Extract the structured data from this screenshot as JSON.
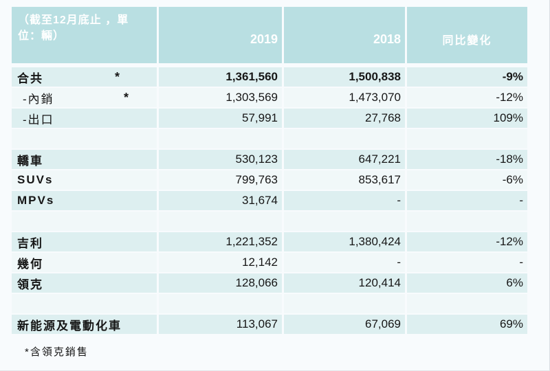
{
  "colors": {
    "header_bg": "#b9dfe2",
    "row_teal": "#ddeff0",
    "row_light": "#f1f8f9",
    "page_bg": "#f8fbfd",
    "header_text": "#ffffff",
    "body_text": "#161616"
  },
  "table": {
    "header": {
      "period": "（截至12月底止 ，單位：輛）",
      "col_2019": "2019",
      "col_2018": "2018",
      "col_change": "同比變化"
    },
    "rows": [
      {
        "type": "data",
        "label": "合共",
        "asterisk": "*",
        "v2019": "1,361,560",
        "v2018": "1,500,838",
        "change": "-9%",
        "bold": true,
        "indent": false
      },
      {
        "type": "data",
        "label": "-內銷",
        "asterisk": "*",
        "v2019": "1,303,569",
        "v2018": "1,473,070",
        "change": "-12%",
        "bold": false,
        "indent": true
      },
      {
        "type": "data",
        "label": "-出口",
        "asterisk": "",
        "v2019": "57,991",
        "v2018": "27,768",
        "change": "109%",
        "bold": false,
        "indent": true
      },
      {
        "type": "spacer"
      },
      {
        "type": "data",
        "label": "轎車",
        "asterisk": "",
        "v2019": "530,123",
        "v2018": "647,221",
        "change": "-18%",
        "bold": false,
        "indent": false
      },
      {
        "type": "data",
        "label": "SUVs",
        "asterisk": "",
        "v2019": "799,763",
        "v2018": "853,617",
        "change": "-6%",
        "bold": false,
        "indent": false
      },
      {
        "type": "data",
        "label": "MPVs",
        "asterisk": "",
        "v2019": "31,674",
        "v2018": "-",
        "change": "-",
        "bold": false,
        "indent": false
      },
      {
        "type": "spacer"
      },
      {
        "type": "data",
        "label": "吉利",
        "asterisk": "",
        "v2019": "1,221,352",
        "v2018": "1,380,424",
        "change": "-12%",
        "bold": false,
        "indent": false
      },
      {
        "type": "data",
        "label": "幾何",
        "asterisk": "",
        "v2019": "12,142",
        "v2018": "-",
        "change": "-",
        "bold": false,
        "indent": false
      },
      {
        "type": "data",
        "label": "領克",
        "asterisk": "",
        "v2019": "128,066",
        "v2018": "120,414",
        "change": "6%",
        "bold": false,
        "indent": false
      },
      {
        "type": "spacer"
      },
      {
        "type": "data",
        "label": "新能源及電動化車",
        "asterisk": "",
        "v2019": "113,067",
        "v2018": "67,069",
        "change": "69%",
        "bold": false,
        "indent": false
      }
    ],
    "footnote": "*含領克銷售"
  }
}
